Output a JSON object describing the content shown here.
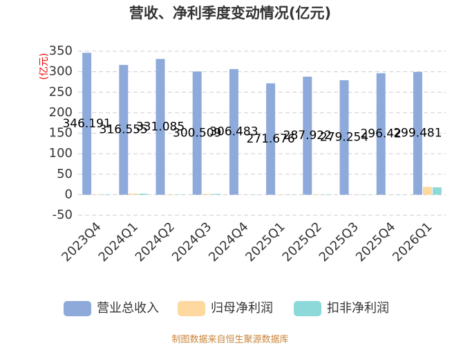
{
  "chart_data": {
    "type": "bar",
    "title": "营收、净利季度变动情况(亿元)",
    "y_label": "(亿元)",
    "categories": [
      "2023Q4",
      "2024Q1",
      "2024Q2",
      "2024Q3",
      "2024Q4",
      "2025Q1",
      "2025Q2",
      "2025Q3",
      "2025Q4",
      "2026Q1"
    ],
    "series": [
      {
        "name": "营业总收入",
        "color": "#8eaadb",
        "values": [
          346.191,
          316.555,
          331.085,
          300.509,
          306.483,
          271.676,
          287.922,
          279.254,
          296.42,
          299.481
        ],
        "show_labels": true
      },
      {
        "name": "归母净利润",
        "color": "#fdd9a0",
        "values": [
          1,
          3,
          1,
          2,
          0.5,
          0.8,
          1,
          0.5,
          0.5,
          19
        ]
      },
      {
        "name": "扣非净利润",
        "color": "#8dd9d9",
        "values": [
          1,
          2.5,
          0.8,
          1.8,
          0.4,
          0.6,
          0.8,
          0.4,
          0.4,
          18
        ]
      }
    ],
    "ylim": [
      -50,
      350
    ],
    "yticks": [
      -50,
      0,
      50,
      100,
      150,
      200,
      250,
      300,
      350
    ],
    "grid": true,
    "source": "制图数据来自恒生聚源数据库"
  }
}
